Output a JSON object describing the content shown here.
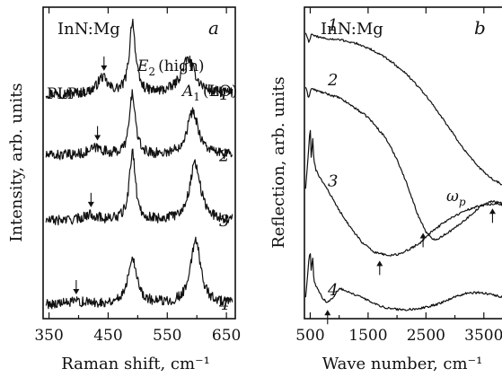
{
  "chart_data": [
    {
      "type": "line",
      "panel": "a",
      "title": "InN:Mg",
      "xlabel": "Raman shift, cm⁻¹",
      "ylabel": "Intensity, arb. units",
      "xlim": [
        340,
        665
      ],
      "ylim": [
        0,
        4.3
      ],
      "xticks": [
        350,
        450,
        550,
        650
      ],
      "annotations": {
        "plp": "PLP⁻",
        "e2_main": "E",
        "e2_sub": "2",
        "e2_tail": "(high)",
        "a1_main": "A",
        "a1_sub": "1",
        "a1_tail": "(LO)"
      },
      "series": [
        {
          "name": "1",
          "base": 3.1,
          "peaks": [
            {
              "x": 440,
              "h": 0.22,
              "w": 10
            },
            {
              "x": 491,
              "h": 1.0,
              "w": 6
            },
            {
              "x": 585,
              "h": 0.48,
              "w": 14
            }
          ],
          "arrow_x": 443
        },
        {
          "name": "2",
          "base": 2.25,
          "peaks": [
            {
              "x": 430,
              "h": 0.1,
              "w": 15
            },
            {
              "x": 491,
              "h": 0.85,
              "w": 6
            },
            {
              "x": 593,
              "h": 0.6,
              "w": 12
            }
          ],
          "arrow_x": 432
        },
        {
          "name": "3",
          "base": 1.35,
          "peaks": [
            {
              "x": 420,
              "h": 0.08,
              "w": 15
            },
            {
              "x": 491,
              "h": 0.95,
              "w": 6
            },
            {
              "x": 597,
              "h": 0.8,
              "w": 11
            }
          ],
          "arrow_x": 421
        },
        {
          "name": "4",
          "base": 0.2,
          "peaks": [
            {
              "x": 400,
              "h": 0.03,
              "w": 15
            },
            {
              "x": 491,
              "h": 0.65,
              "w": 9
            },
            {
              "x": 598,
              "h": 0.9,
              "w": 10
            }
          ],
          "arrow_x": 396
        }
      ]
    },
    {
      "type": "line",
      "panel": "b",
      "title": "InN:Mg",
      "xlabel": "Wave number, cm⁻¹",
      "ylabel": "Reflection, arb. units",
      "xlim": [
        400,
        4000
      ],
      "ylim": [
        0,
        4.3
      ],
      "xticks": [
        500,
        1500,
        2500,
        3500
      ],
      "annotations": {
        "omega_main": "ω",
        "omega_sub": "p"
      },
      "series": [
        {
          "name": "1",
          "x": [
            420,
            480,
            520,
            600,
            800,
            1000,
            1300,
            1600,
            1900,
            2200,
            2500,
            2800,
            3100,
            3400,
            3600,
            3800,
            4000
          ],
          "y": [
            3.95,
            3.82,
            3.92,
            3.9,
            3.86,
            3.85,
            3.8,
            3.7,
            3.55,
            3.35,
            3.08,
            2.75,
            2.4,
            2.1,
            1.95,
            1.86,
            1.82
          ]
        },
        {
          "name": "2",
          "x": [
            420,
            470,
            520,
            600,
            800,
            1000,
            1200,
            1500,
            1800,
            2000,
            2200,
            2350,
            2500,
            2600,
            2700,
            2800,
            2900,
            3000,
            3100,
            3200,
            3300,
            3400,
            3500,
            3650,
            3800,
            3900,
            4000
          ],
          "y": [
            3.2,
            3.05,
            3.18,
            3.15,
            3.1,
            3.05,
            2.95,
            2.78,
            2.5,
            2.2,
            1.8,
            1.45,
            1.2,
            1.1,
            1.1,
            1.15,
            1.2,
            1.25,
            1.32,
            1.38,
            1.45,
            1.52,
            1.58,
            1.62,
            1.6,
            1.55,
            1.5
          ],
          "arrows": [
            2450,
            3650
          ]
        },
        {
          "name": "3",
          "x": [
            420,
            470,
            500,
            520,
            540,
            560,
            600,
            700,
            800,
            1000,
            1200,
            1400,
            1600,
            1800,
            2000,
            2200,
            2400,
            2600,
            2800,
            3000,
            3200,
            3400,
            3600,
            3800,
            4000
          ],
          "y": [
            1.8,
            2.3,
            2.65,
            2.15,
            2.55,
            2.2,
            2.05,
            1.9,
            1.78,
            1.5,
            1.25,
            1.05,
            0.92,
            0.88,
            0.88,
            0.95,
            1.05,
            1.2,
            1.32,
            1.42,
            1.5,
            1.55,
            1.58,
            1.58,
            1.55
          ],
          "arrows": [
            1700
          ]
        },
        {
          "name": "4",
          "x": [
            420,
            470,
            500,
            520,
            540,
            560,
            600,
            700,
            800,
            900,
            1000,
            1200,
            1500,
            1800,
            2100,
            2400,
            2700,
            3000,
            3200,
            3400,
            3600,
            3800,
            4000
          ],
          "y": [
            0.3,
            0.75,
            0.95,
            0.6,
            0.9,
            0.55,
            0.45,
            0.3,
            0.22,
            0.3,
            0.42,
            0.36,
            0.25,
            0.15,
            0.12,
            0.14,
            0.2,
            0.3,
            0.35,
            0.36,
            0.34,
            0.3,
            0.27
          ],
          "arrows": [
            800
          ]
        }
      ]
    }
  ]
}
